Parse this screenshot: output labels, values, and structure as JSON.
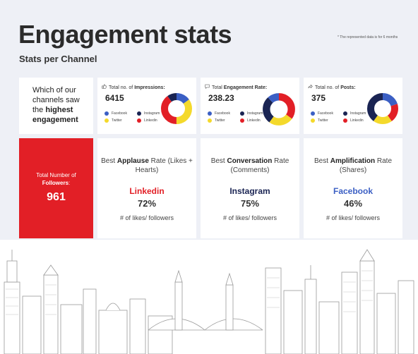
{
  "header": {
    "title": "Engagement stats",
    "subtitle": "Stats per Channel",
    "note": "* The represented data is for 6 months"
  },
  "intro": {
    "text_pre": "Which of our channels saw the ",
    "text_bold": "highest engagement"
  },
  "legend_labels": [
    "Facebook",
    "Instagram",
    "Twitter",
    "Linkedin"
  ],
  "colors": {
    "facebook": "#3b5fc4",
    "instagram": "#1a2453",
    "twitter": "#f4d92b",
    "linkedin": "#e21f26",
    "followers_bg": "#e21f26"
  },
  "stats": [
    {
      "label_pre": "Total no. of ",
      "label_bold": "Impressions:",
      "icon": "thumbs-up-icon",
      "value": "6415",
      "slices": [
        {
          "channel": "facebook",
          "value": 0.15
        },
        {
          "channel": "twitter",
          "value": 0.35
        },
        {
          "channel": "linkedin",
          "value": 0.4
        },
        {
          "channel": "instagram",
          "value": 0.1
        }
      ]
    },
    {
      "label_pre": "Total ",
      "label_bold": "Engagement Rate:",
      "icon": "comment-icon",
      "value": "238.23",
      "slices": [
        {
          "channel": "linkedin",
          "value": 0.35
        },
        {
          "channel": "twitter",
          "value": 0.25
        },
        {
          "channel": "instagram",
          "value": 0.28
        },
        {
          "channel": "facebook",
          "value": 0.12
        }
      ]
    },
    {
      "label_pre": "Total no. of ",
      "label_bold": "Posts:",
      "icon": "share-icon",
      "value": "375",
      "slices": [
        {
          "channel": "facebook",
          "value": 0.2
        },
        {
          "channel": "linkedin",
          "value": 0.2
        },
        {
          "channel": "twitter",
          "value": 0.2
        },
        {
          "channel": "instagram",
          "value": 0.4
        }
      ]
    }
  ],
  "followers": {
    "label_pre": "Total Number of ",
    "label_bold": "Followers",
    "label_post": ":",
    "value": "961"
  },
  "best": [
    {
      "pre": "Best ",
      "bold": "Applause",
      "post": " Rate (Likes + Hearts)",
      "channel": "Linkedin",
      "channel_color": "#e21f26",
      "pct": "72%",
      "sub": "# of likes/ followers"
    },
    {
      "pre": "Best ",
      "bold": "Conversation",
      "post": " Rate (Comments)",
      "channel": "Instagram",
      "channel_color": "#1a2453",
      "pct": "75%",
      "sub": "# of likes/ followers"
    },
    {
      "pre": "Best ",
      "bold": "Amplification",
      "post": " Rate (Shares)",
      "channel": "Facebook",
      "channel_color": "#3b5fc4",
      "pct": "46%",
      "sub": "# of likes/ followers"
    }
  ]
}
